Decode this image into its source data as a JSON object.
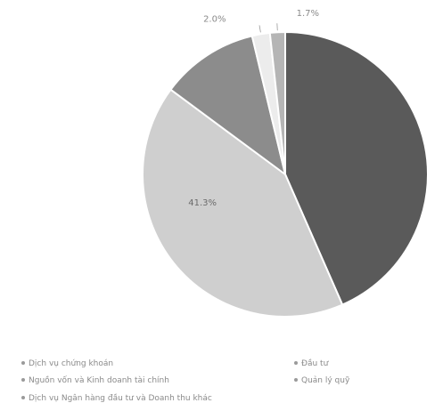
{
  "chart_data": {
    "type": "pie",
    "title": "",
    "slices": [
      {
        "label": "Dịch vụ chứng khoán",
        "value": 43.0,
        "data_label": "",
        "color": "#5a5a5a"
      },
      {
        "label": "Nguồn vốn và Kinh doanh tài chính",
        "value": 41.3,
        "data_label": "41.3%",
        "color": "#cfcfcf"
      },
      {
        "label": "Dịch vụ Ngân hàng đầu tư và Doanh thu khác",
        "value": 11.0,
        "data_label": "",
        "color": "#8c8c8c"
      },
      {
        "label": "Đầu tư",
        "value": 2.0,
        "data_label": "2.0%",
        "color": "#ececec"
      },
      {
        "label": "Quản lý quỹ",
        "value": 1.7,
        "data_label": "1.7%",
        "color": "#b5b5b5"
      }
    ],
    "legend_position": "bottom",
    "grid": false
  }
}
